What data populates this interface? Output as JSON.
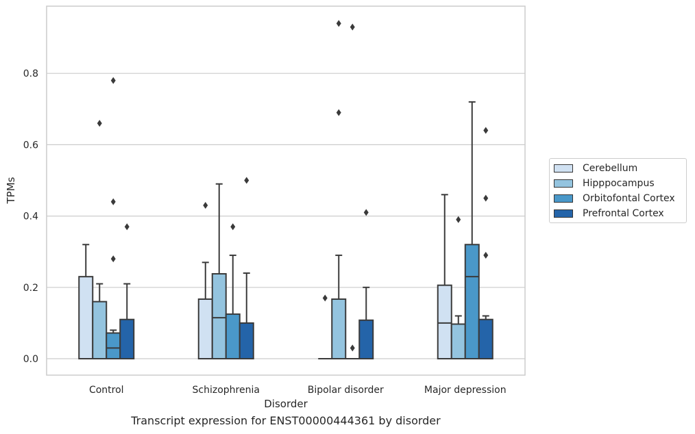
{
  "chart_data": {
    "type": "box",
    "title": "Transcript expression for ENST00000444361 by disorder",
    "xlabel": "Disorder",
    "ylabel": "TPMs",
    "ylim": [
      -0.045,
      0.99
    ],
    "yticks": [
      "0.0",
      "0.2",
      "0.4",
      "0.6",
      "0.8"
    ],
    "grid": true,
    "legend_position": "right",
    "categories": [
      "Control",
      "Schizophrenia",
      "Bipolar disorder",
      "Major depression"
    ],
    "series": [
      {
        "name": "Cerebellum",
        "color": "#d0e1f2",
        "boxes": [
          {
            "q1": 0.0,
            "median": 0.0,
            "q3": 0.23,
            "whisker_low": 0.0,
            "whisker_high": 0.32,
            "outliers": []
          },
          {
            "q1": 0.0,
            "median": 0.0,
            "q3": 0.167,
            "whisker_low": 0.0,
            "whisker_high": 0.27,
            "outliers": [
              0.43
            ]
          },
          {
            "q1": 0.0,
            "median": 0.0,
            "q3": 0.0,
            "whisker_low": 0.0,
            "whisker_high": 0.0,
            "outliers": [
              0.17
            ]
          },
          {
            "q1": 0.0,
            "median": 0.1,
            "q3": 0.206,
            "whisker_low": 0.0,
            "whisker_high": 0.46,
            "outliers": []
          }
        ]
      },
      {
        "name": "Hipppocampus",
        "color": "#94c4df",
        "boxes": [
          {
            "q1": 0.0,
            "median": 0.0,
            "q3": 0.16,
            "whisker_low": 0.0,
            "whisker_high": 0.21,
            "outliers": [
              0.66
            ]
          },
          {
            "q1": 0.0,
            "median": 0.115,
            "q3": 0.238,
            "whisker_low": 0.0,
            "whisker_high": 0.49,
            "outliers": []
          },
          {
            "q1": 0.0,
            "median": 0.0,
            "q3": 0.167,
            "whisker_low": 0.0,
            "whisker_high": 0.29,
            "outliers": [
              0.69,
              0.94
            ]
          },
          {
            "q1": 0.0,
            "median": 0.0,
            "q3": 0.097,
            "whisker_low": 0.0,
            "whisker_high": 0.12,
            "outliers": [
              0.39
            ]
          }
        ]
      },
      {
        "name": "Orbitofontal Cortex",
        "color": "#4a98c9",
        "boxes": [
          {
            "q1": 0.0,
            "median": 0.03,
            "q3": 0.072,
            "whisker_low": 0.0,
            "whisker_high": 0.08,
            "outliers": [
              0.28,
              0.44,
              0.78
            ]
          },
          {
            "q1": 0.0,
            "median": 0.0,
            "q3": 0.125,
            "whisker_low": 0.0,
            "whisker_high": 0.29,
            "outliers": [
              0.37
            ]
          },
          {
            "q1": 0.0,
            "median": 0.0,
            "q3": 0.0,
            "whisker_low": 0.0,
            "whisker_high": 0.0,
            "outliers": [
              0.03,
              0.93
            ]
          },
          {
            "q1": 0.0,
            "median": 0.23,
            "q3": 0.32,
            "whisker_low": 0.0,
            "whisker_high": 0.72,
            "outliers": []
          }
        ]
      },
      {
        "name": "Prefrontal Cortex",
        "color": "#2464a9",
        "boxes": [
          {
            "q1": 0.0,
            "median": 0.0,
            "q3": 0.11,
            "whisker_low": 0.0,
            "whisker_high": 0.21,
            "outliers": [
              0.37
            ]
          },
          {
            "q1": 0.0,
            "median": 0.0,
            "q3": 0.1,
            "whisker_low": 0.0,
            "whisker_high": 0.24,
            "outliers": [
              0.5
            ]
          },
          {
            "q1": 0.0,
            "median": 0.0,
            "q3": 0.108,
            "whisker_low": 0.0,
            "whisker_high": 0.2,
            "outliers": [
              0.41
            ]
          },
          {
            "q1": 0.0,
            "median": 0.0,
            "q3": 0.11,
            "whisker_low": 0.0,
            "whisker_high": 0.12,
            "outliers": [
              0.29,
              0.45,
              0.64
            ]
          }
        ]
      }
    ]
  }
}
